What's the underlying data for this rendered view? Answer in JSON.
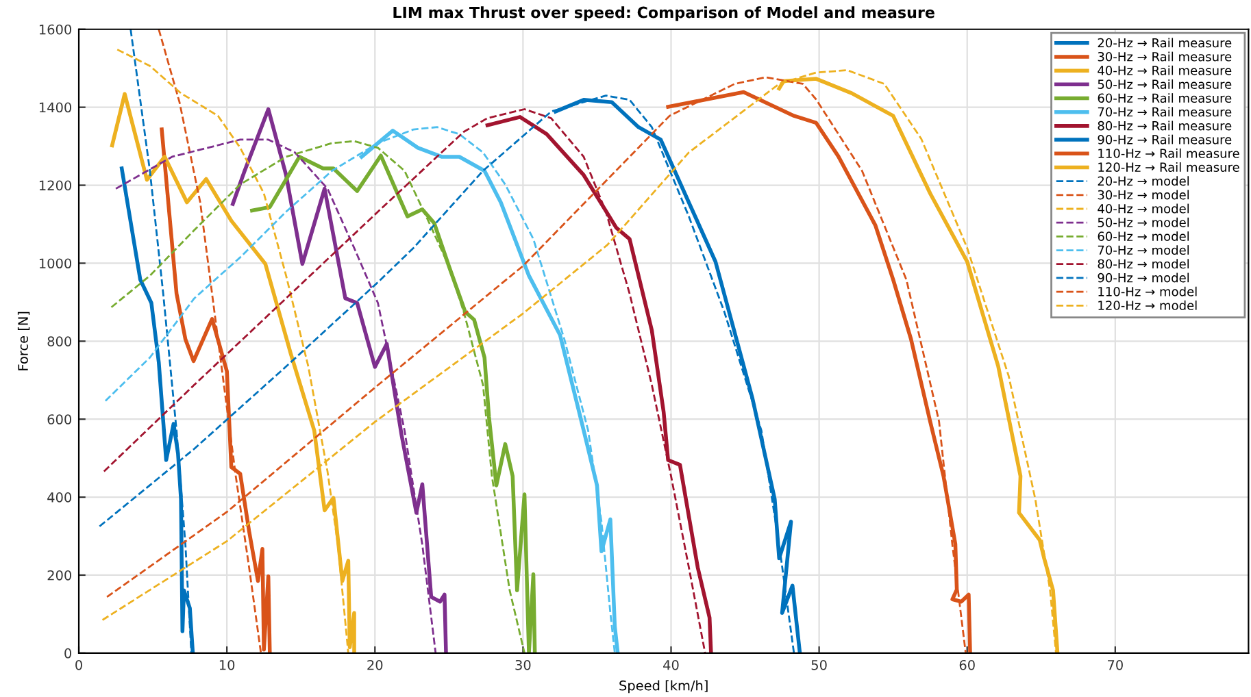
{
  "chart_data": {
    "type": "line",
    "title": "LIM max Thrust over speed: Comparison of Model and measure",
    "xlabel": "Speed [km/h]",
    "ylabel": "Force [N]",
    "xlim": [
      0,
      79
    ],
    "ylim": [
      0,
      1600
    ],
    "xticks": [
      0,
      10,
      20,
      30,
      40,
      50,
      60,
      70
    ],
    "yticks": [
      0,
      200,
      400,
      600,
      800,
      1000,
      1200,
      1400,
      1600
    ],
    "grid": true,
    "legend": "top right",
    "marker": "none",
    "series": [
      {
        "name": "20-Hz → Rail measure",
        "color": "#0072bd",
        "line_style": "solid",
        "x": [
          2.9,
          4.15,
          4.9,
          5.4,
          5.9,
          6.4,
          6.7,
          6.9,
          7.0,
          7.1,
          7.3,
          7.5,
          7.7
        ],
        "values": [
          1243,
          958,
          898,
          746,
          495,
          588,
          512,
          395,
          56,
          161,
          138,
          115,
          0
        ]
      },
      {
        "name": "30-Hz → Rail measure",
        "color": "#d95319",
        "line_style": "solid",
        "x": [
          5.6,
          6.6,
          7.2,
          7.75,
          9.0,
          10.0,
          10.3,
          10.9,
          11.5,
          12.1,
          12.4,
          12.5,
          12.8,
          12.9
        ],
        "values": [
          1343,
          922,
          805,
          749,
          857,
          723,
          477,
          460,
          313,
          185,
          267,
          9,
          197,
          0
        ]
      },
      {
        "name": "40-Hz → Rail measure",
        "color": "#edb120",
        "line_style": "solid",
        "x": [
          2.25,
          3.1,
          4.6,
          5.8,
          7.3,
          8.6,
          10.3,
          12.6,
          14.3,
          15.9,
          16.6,
          17.2,
          17.8,
          18.2,
          18.3,
          18.6,
          18.6
        ],
        "values": [
          1302,
          1434,
          1214,
          1273,
          1156,
          1216,
          1109,
          998,
          770,
          571,
          366,
          398,
          185,
          237,
          15,
          103,
          0
        ]
      },
      {
        "name": "50-Hz → Rail measure",
        "color": "#7e2f8e",
        "line_style": "solid",
        "x": [
          10.4,
          11.2,
          12.8,
          14.0,
          15.1,
          16.6,
          18.0,
          18.8,
          20.0,
          20.8,
          21.8,
          22.8,
          23.2,
          23.8,
          24.4,
          24.7,
          24.8
        ],
        "values": [
          1152,
          1237,
          1395,
          1226,
          998,
          1191,
          910,
          898,
          734,
          793,
          559,
          360,
          433,
          144,
          132,
          150,
          0
        ]
      },
      {
        "name": "60-Hz → Rail measure",
        "color": "#77ac30",
        "line_style": "solid",
        "x": [
          11.7,
          12.9,
          14.9,
          16.5,
          17.2,
          18.8,
          20.4,
          22.2,
          23.2,
          24.0,
          25.0,
          26.1,
          26.7,
          27.4,
          27.7,
          28.2,
          28.8,
          29.3,
          29.6,
          30.1,
          30.4,
          30.7,
          30.8
        ],
        "values": [
          1135,
          1144,
          1273,
          1243,
          1243,
          1185,
          1276,
          1120,
          1138,
          1103,
          992,
          875,
          855,
          758,
          606,
          430,
          536,
          454,
          161,
          407,
          0,
          202,
          0
        ]
      },
      {
        "name": "70-Hz → Rail measure",
        "color": "#4dbeee",
        "line_style": "solid",
        "x": [
          19.1,
          21.2,
          22.9,
          24.5,
          25.7,
          27.4,
          28.5,
          30.4,
          32.5,
          34.1,
          35.0,
          35.3,
          35.9,
          36.2,
          36.4
        ],
        "values": [
          1273,
          1340,
          1296,
          1273,
          1273,
          1237,
          1156,
          968,
          816,
          571,
          430,
          261,
          343,
          68,
          0
        ]
      },
      {
        "name": "80-Hz → Rail measure",
        "color": "#a2142f",
        "line_style": "solid",
        "x": [
          27.6,
          29.8,
          31.6,
          34.1,
          36.3,
          37.2,
          38.7,
          39.5,
          39.8,
          40.6,
          41.8,
          42.6,
          42.7
        ],
        "values": [
          1354,
          1375,
          1331,
          1226,
          1091,
          1062,
          828,
          618,
          495,
          483,
          220,
          91,
          0
        ]
      },
      {
        "name": "90-Hz → Rail measure",
        "color": "#0072bd",
        "line_style": "solid",
        "x": [
          32.2,
          34.1,
          36.0,
          37.8,
          39.3,
          41.2,
          43.0,
          45.5,
          47.0,
          47.3,
          48.1,
          47.5,
          48.2,
          48.7
        ],
        "values": [
          1389,
          1419,
          1413,
          1349,
          1317,
          1156,
          1004,
          653,
          395,
          243,
          337,
          103,
          173,
          0
        ]
      },
      {
        "name": "110-Hz → Rail measure",
        "color": "#d95319",
        "line_style": "solid",
        "x": [
          39.8,
          44.9,
          48.3,
          49.8,
          51.3,
          53.8,
          55.0,
          56.2,
          57.5,
          58.4,
          59.2,
          59.3,
          59.0,
          59.6,
          60.1,
          60.2
        ],
        "values": [
          1401,
          1439,
          1378,
          1360,
          1274,
          1097,
          958,
          806,
          594,
          454,
          280,
          163,
          138,
          132,
          150,
          0
        ]
      },
      {
        "name": "120-Hz → Rail measure",
        "color": "#edb120",
        "line_style": "solid",
        "x": [
          47.3,
          47.6,
          49.8,
          52.2,
          55.0,
          57.5,
          60.0,
          62.1,
          63.6,
          63.5,
          64.9,
          65.2,
          65.8,
          66.1
        ],
        "values": [
          1448,
          1467,
          1473,
          1436,
          1378,
          1179,
          1004,
          735,
          454,
          360,
          290,
          243,
          161,
          0
        ]
      },
      {
        "name": "20-Hz → model",
        "color": "#0072bd",
        "line_style": "dashed",
        "x": [
          3.5,
          4.8,
          5.7,
          6.6,
          7.2,
          7.6
        ],
        "values": [
          1600,
          1237,
          922,
          571,
          278,
          0
        ]
      },
      {
        "name": "30-Hz → model",
        "color": "#d95319",
        "line_style": "dashed",
        "x": [
          5.4,
          6.8,
          8.2,
          9.4,
          10.6,
          11.5,
          12.3
        ],
        "values": [
          1600,
          1413,
          1156,
          805,
          454,
          220,
          0
        ]
      },
      {
        "name": "40-Hz → model",
        "color": "#edb120",
        "line_style": "dashed",
        "x": [
          2.6,
          4.8,
          6.9,
          9.4,
          10.9,
          12.5,
          14.0,
          15.5,
          16.8,
          17.5,
          18.2
        ],
        "values": [
          1548,
          1506,
          1436,
          1378,
          1296,
          1179,
          968,
          735,
          465,
          278,
          0
        ]
      },
      {
        "name": "50-Hz → model",
        "color": "#7e2f8e",
        "line_style": "dashed",
        "x": [
          2.5,
          6.3,
          10.9,
          12.8,
          14.6,
          16.8,
          18.6,
          20.2,
          22.0,
          23.2,
          24.1
        ],
        "values": [
          1191,
          1273,
          1317,
          1317,
          1284,
          1191,
          1039,
          898,
          571,
          278,
          0
        ]
      },
      {
        "name": "60-Hz → model",
        "color": "#77ac30",
        "line_style": "dashed",
        "x": [
          2.2,
          4.8,
          7.8,
          10.9,
          14.0,
          17.1,
          18.6,
          20.2,
          22.0,
          23.6,
          25.0,
          26.0,
          27.3,
          27.9,
          29.1,
          30.1
        ],
        "values": [
          887,
          968,
          1085,
          1202,
          1273,
          1308,
          1313,
          1296,
          1237,
          1109,
          992,
          875,
          688,
          454,
          161,
          0
        ]
      },
      {
        "name": "70-Hz → model",
        "color": "#4dbeee",
        "line_style": "dashed",
        "x": [
          1.8,
          4.8,
          7.8,
          10.9,
          14.0,
          17.1,
          20.2,
          22.6,
          24.2,
          25.7,
          27.3,
          28.8,
          30.7,
          32.8,
          34.4,
          35.3,
          35.9,
          36.2
        ],
        "values": [
          647,
          758,
          910,
          1015,
          1132,
          1237,
          1308,
          1343,
          1349,
          1331,
          1284,
          1202,
          1062,
          804,
          571,
          337,
          103,
          0
        ]
      },
      {
        "name": "80-Hz → model",
        "color": "#a2142f",
        "line_style": "dashed",
        "x": [
          1.7,
          7.8,
          14.0,
          20.2,
          26.0,
          27.6,
          30.1,
          31.9,
          34.1,
          35.6,
          37.2,
          38.7,
          40.0,
          41.2,
          42.3
        ],
        "values": [
          466,
          688,
          910,
          1132,
          1337,
          1372,
          1395,
          1372,
          1273,
          1132,
          922,
          688,
          454,
          220,
          0
        ]
      },
      {
        "name": "90-Hz → model",
        "color": "#0072bd",
        "line_style": "dashed",
        "x": [
          1.4,
          7.8,
          14.0,
          20.2,
          22.6,
          27.3,
          31.9,
          35.6,
          37.2,
          38.7,
          41.2,
          43.6,
          46.1,
          47.3,
          48.3
        ],
        "values": [
          325,
          524,
          735,
          951,
          1039,
          1237,
          1389,
          1430,
          1419,
          1349,
          1120,
          875,
          571,
          278,
          0
        ]
      },
      {
        "name": "110-Hz → model",
        "color": "#d95319",
        "line_style": "dashed",
        "x": [
          1.9,
          10.0,
          20.0,
          30.0,
          39.9,
          44.3,
          46.4,
          48.9,
          49.8,
          52.9,
          55.9,
          58.1,
          59.0,
          59.9
        ],
        "values": [
          144,
          362,
          681,
          993,
          1378,
          1460,
          1477,
          1460,
          1420,
          1237,
          957,
          594,
          278,
          0
        ]
      },
      {
        "name": "120-Hz → model",
        "color": "#edb120",
        "line_style": "dashed",
        "x": [
          1.6,
          10.0,
          20.0,
          30.0,
          35.7,
          41.2,
          47.3,
          49.8,
          51.9,
          54.4,
          56.9,
          60.0,
          62.8,
          64.6,
          65.6,
          66.0
        ],
        "values": [
          85,
          287,
          593,
          871,
          1047,
          1284,
          1460,
          1489,
          1495,
          1460,
          1319,
          1039,
          711,
          395,
          161,
          0
        ]
      }
    ]
  }
}
